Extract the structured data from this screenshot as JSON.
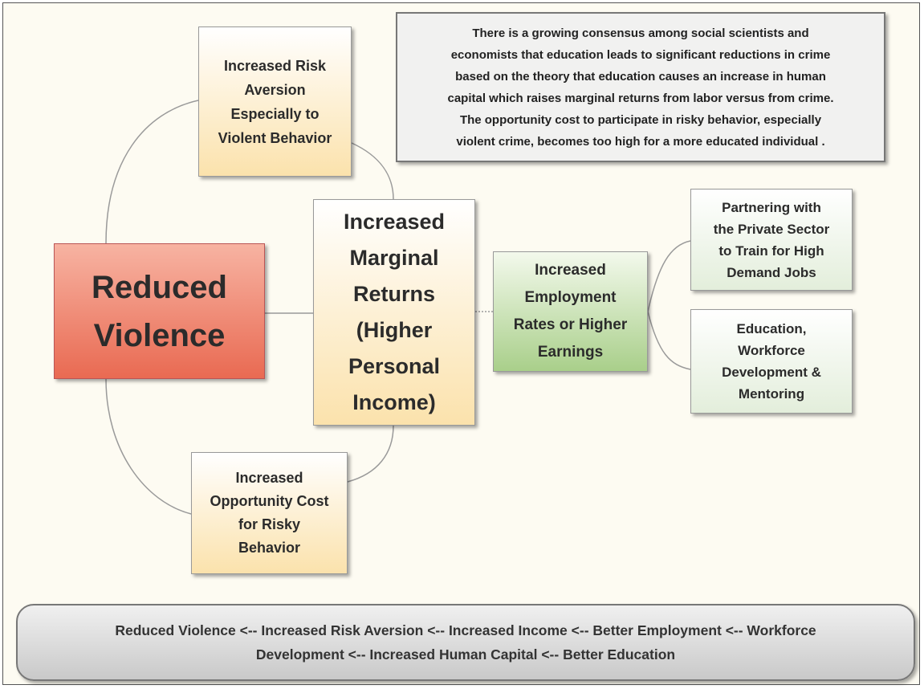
{
  "nodes": [
    {
      "id": "reduced-violence",
      "lines": [
        "Reduced",
        "Violence"
      ]
    },
    {
      "id": "risk-aversion",
      "lines": [
        "Increased Risk",
        "Aversion",
        "Especially to",
        "Violent Behavior"
      ]
    },
    {
      "id": "marginal-returns",
      "lines": [
        "Increased",
        "Marginal",
        "Returns",
        "(Higher",
        "Personal",
        "Income)"
      ]
    },
    {
      "id": "opportunity-cost",
      "lines": [
        "Increased",
        "Opportunity Cost",
        "for Risky",
        "Behavior"
      ]
    },
    {
      "id": "employment",
      "lines": [
        "Increased",
        "Employment",
        "Rates or Higher",
        "Earnings"
      ]
    },
    {
      "id": "partnering",
      "lines": [
        "Partnering with",
        "the Private Sector",
        "to Train for High",
        "Demand Jobs"
      ]
    },
    {
      "id": "education",
      "lines": [
        "Education,",
        "Workforce",
        "Development &",
        "Mentoring"
      ]
    }
  ],
  "note": {
    "lines": [
      "There is a growing consensus among social scientists and",
      "economists that education leads to significant reductions in crime",
      "based on the theory that education causes an increase in human",
      "capital which raises marginal returns from labor versus from crime.",
      "The opportunity cost to participate in risky behavior, especially",
      "violent crime, becomes too high for a more educated individual ."
    ]
  },
  "summary": {
    "lines": [
      "Reduced Violence <-- Increased Risk Aversion <-- Increased Income <-- Better Employment <-- Workforce",
      "Development <-- Increased Human Capital <-- Better Education"
    ]
  }
}
